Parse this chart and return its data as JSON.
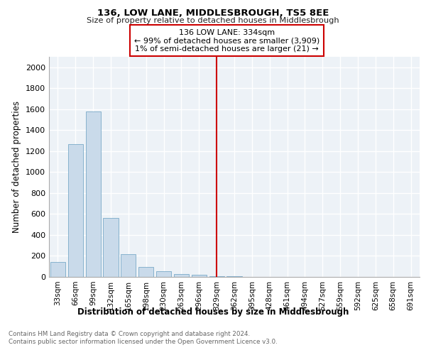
{
  "title": "136, LOW LANE, MIDDLESBROUGH, TS5 8EE",
  "subtitle": "Size of property relative to detached houses in Middlesbrough",
  "xlabel": "Distribution of detached houses by size in Middlesbrough",
  "ylabel": "Number of detached properties",
  "bar_color": "#c9daea",
  "bar_edge_color": "#7aaac8",
  "categories": [
    "33sqm",
    "66sqm",
    "99sqm",
    "132sqm",
    "165sqm",
    "198sqm",
    "230sqm",
    "263sqm",
    "296sqm",
    "329sqm",
    "362sqm",
    "395sqm",
    "428sqm",
    "461sqm",
    "494sqm",
    "527sqm",
    "559sqm",
    "592sqm",
    "625sqm",
    "658sqm",
    "691sqm"
  ],
  "values": [
    140,
    1270,
    1580,
    565,
    220,
    95,
    55,
    30,
    18,
    8,
    5,
    2,
    1,
    0,
    0,
    0,
    0,
    0,
    0,
    0,
    0
  ],
  "ylim": [
    0,
    2100
  ],
  "yticks": [
    0,
    200,
    400,
    600,
    800,
    1000,
    1200,
    1400,
    1600,
    1800,
    2000
  ],
  "property_line_index": 9,
  "property_line_label": "136 LOW LANE: 334sqm",
  "annotation_line1": "← 99% of detached houses are smaller (3,909)",
  "annotation_line2": "1% of semi-detached houses are larger (21) →",
  "footer_line1": "Contains HM Land Registry data © Crown copyright and database right 2024.",
  "footer_line2": "Contains public sector information licensed under the Open Government Licence v3.0.",
  "background_color": "#edf2f7",
  "grid_color": "#ffffff"
}
